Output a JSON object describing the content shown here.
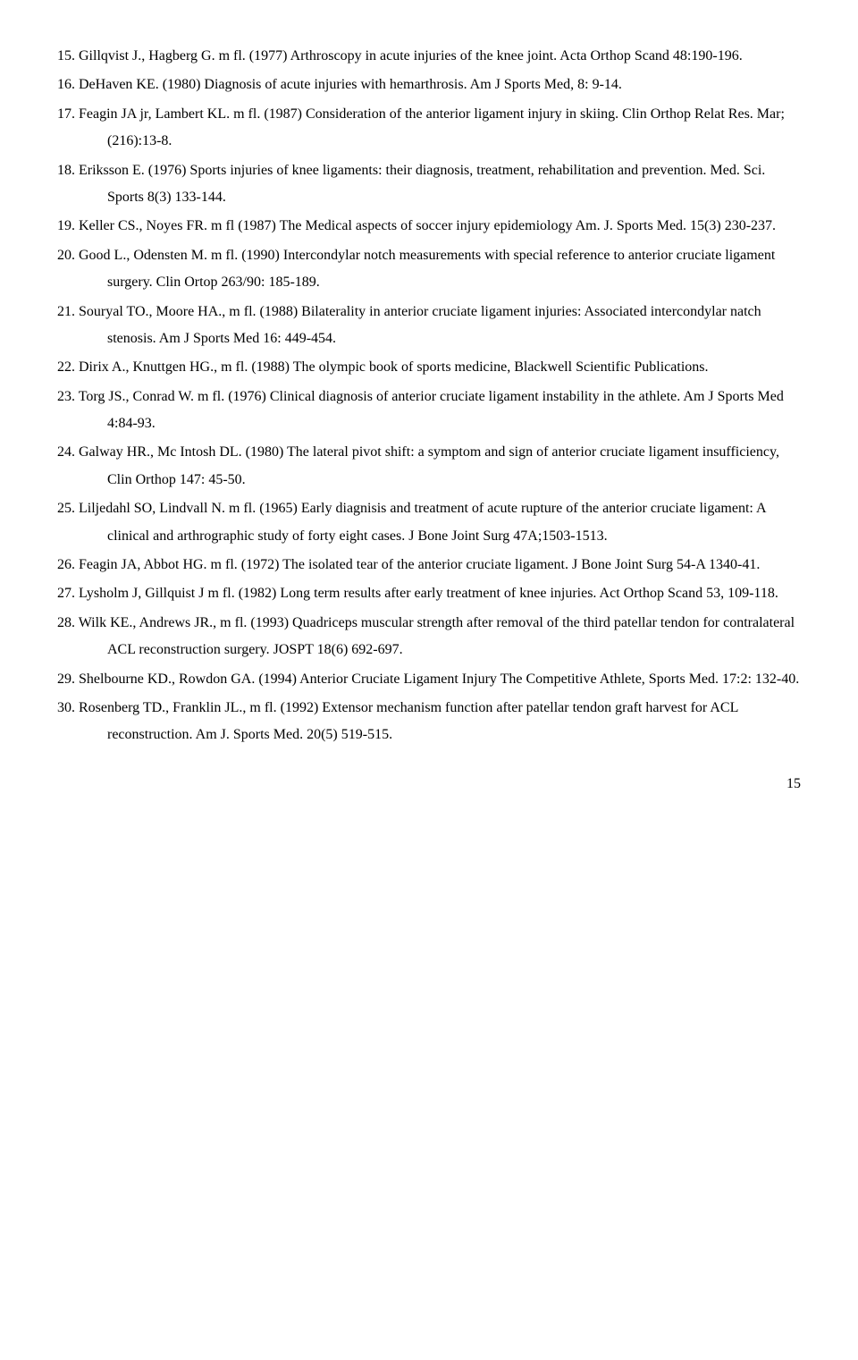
{
  "references": [
    {
      "n": "15",
      "text": "Gillqvist J., Hagberg G. m fl. (1977) Arthroscopy in acute injuries of the knee joint. Acta Orthop Scand 48:190-196."
    },
    {
      "n": "16",
      "text": "DeHaven KE. (1980) Diagnosis of acute injuries with hemarthrosis. Am J Sports Med, 8: 9-14."
    },
    {
      "n": "17",
      "text": "Feagin JA jr, Lambert KL. m fl. (1987) Consideration of the anterior ligament injury in skiing. Clin Orthop Relat Res. Mar; (216):13-8."
    },
    {
      "n": "18",
      "text": "Eriksson E. (1976) Sports injuries of knee ligaments: their diagnosis, treatment, rehabilitation and prevention. Med. Sci. Sports 8(3) 133-144."
    },
    {
      "n": "19",
      "text": "Keller CS., Noyes FR. m fl (1987) The Medical aspects of soccer injury epidemiology Am. J. Sports Med. 15(3) 230-237."
    },
    {
      "n": "20",
      "text": "Good L., Odensten M. m fl. (1990) Intercondylar notch measurements with special reference to anterior cruciate ligament surgery. Clin Ortop 263/90: 185-189."
    },
    {
      "n": "21",
      "text": "Souryal TO., Moore HA., m fl. (1988) Bilaterality in anterior cruciate ligament injuries: Associated intercondylar natch stenosis. Am J Sports Med 16: 449-454."
    },
    {
      "n": "22",
      "text": "Dirix A., Knuttgen HG., m fl. (1988) The olympic book of sports medicine, Blackwell Scientific Publications."
    },
    {
      "n": "23",
      "text": "Torg JS., Conrad W. m fl. (1976) Clinical diagnosis of anterior cruciate ligament instability in the athlete. Am J Sports Med 4:84-93."
    },
    {
      "n": "24",
      "text": "Galway HR., Mc Intosh DL. (1980) The lateral pivot shift: a symptom and sign of anterior cruciate ligament insufficiency, Clin Orthop 147: 45-50."
    },
    {
      "n": "25",
      "text": "Liljedahl SO, Lindvall N. m fl. (1965) Early diagnisis and treatment of acute rupture of the anterior cruciate ligament: A clinical and arthrographic study of forty eight cases. J Bone Joint Surg 47A;1503-1513."
    },
    {
      "n": "26",
      "text": "Feagin JA, Abbot HG. m fl. (1972) The isolated tear of the anterior cruciate ligament. J Bone Joint Surg 54-A 1340-41."
    },
    {
      "n": "27",
      "text": "Lysholm J, Gillquist J m fl. (1982) Long term results after early treatment of knee injuries. Act Orthop Scand 53, 109-118."
    },
    {
      "n": "28",
      "text": "Wilk KE., Andrews JR., m fl. (1993) Quadriceps muscular strength after removal of the third patellar tendon for contralateral ACL reconstruction surgery. JOSPT 18(6) 692-697."
    },
    {
      "n": "29",
      "text": "Shelbourne KD., Rowdon GA. (1994) Anterior Cruciate Ligament Injury The Competitive Athlete, Sports Med. 17:2: 132-40."
    },
    {
      "n": "30",
      "text": "Rosenberg TD., Franklin JL., m fl. (1992) Extensor mechanism function after patellar tendon graft harvest for ACL reconstruction. Am J. Sports Med. 20(5) 519-515."
    }
  ],
  "page_number": "15"
}
